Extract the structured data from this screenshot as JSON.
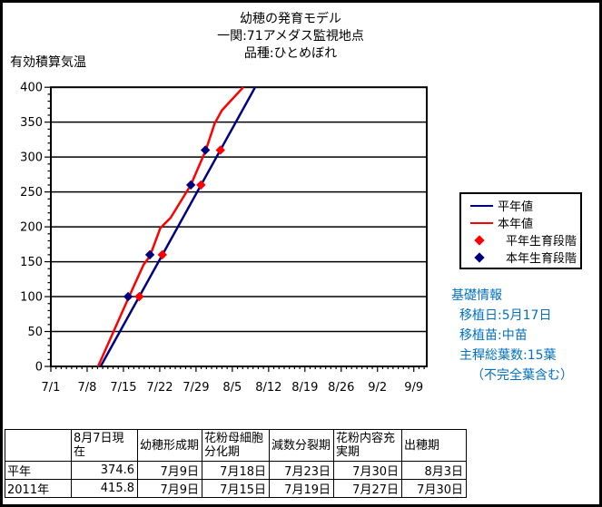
{
  "title": {
    "line1": "幼穂の発育モデル",
    "line2": "一関:71アメダス監視地点",
    "line3": "品種:ひとめぼれ"
  },
  "chart_data": {
    "type": "line",
    "title": "幼穂の発育モデル",
    "subtitle": "一関:71アメダス監視地点",
    "variety": "品種:ひとめぼれ",
    "ylabel": "有効積算気温",
    "ylim": [
      0,
      400
    ],
    "ytick_step": 50,
    "y_minor_step": 10,
    "x_ticks": [
      "7/1",
      "7/8",
      "7/15",
      "7/22",
      "7/29",
      "8/5",
      "8/12",
      "8/19",
      "8/26",
      "9/2",
      "9/9"
    ],
    "x_day_span": 72.5,
    "grid": "horizontal",
    "legend_position": "right",
    "series": [
      {
        "name": "平年値",
        "kind": "line",
        "color": "#000080",
        "points": [
          [
            9.6,
            0
          ],
          [
            39.4,
            400
          ]
        ]
      },
      {
        "name": "本年値",
        "kind": "line",
        "color": "#ff0000",
        "points": [
          [
            9.1,
            0
          ],
          [
            14.9,
            97
          ],
          [
            17.9,
            146
          ],
          [
            19.1,
            158
          ],
          [
            21.1,
            198
          ],
          [
            23.1,
            213
          ],
          [
            27.0,
            260
          ],
          [
            29.9,
            310
          ],
          [
            31.6,
            348
          ],
          [
            33.0,
            367
          ],
          [
            37.1,
            400
          ]
        ]
      },
      {
        "name": "平年生育段階",
        "kind": "scatter",
        "marker": "diamond",
        "color": "#ff0000",
        "stages": [
          {
            "stage": "花粉母細胞分化期",
            "date": "7月18日",
            "day": 17.05,
            "value": 100
          },
          {
            "stage": "減数分裂期",
            "date": "7月23日",
            "day": 21.5,
            "value": 160
          },
          {
            "stage": "花粉内容充実期",
            "date": "7月30日",
            "day": 28.95,
            "value": 260
          },
          {
            "stage": "出穂期",
            "date": "8月3日",
            "day": 32.7,
            "value": 310
          }
        ]
      },
      {
        "name": "本年生育段階",
        "kind": "scatter",
        "marker": "diamond",
        "color": "#000080",
        "stages": [
          {
            "stage": "花粉母細胞分化期",
            "date": "7月15日",
            "day": 14.9,
            "value": 100
          },
          {
            "stage": "減数分裂期",
            "date": "7月19日",
            "day": 19.1,
            "value": 160
          },
          {
            "stage": "花粉内容充実期",
            "date": "7月27日",
            "day": 27.0,
            "value": 260
          },
          {
            "stage": "出穂期",
            "date": "7月30日",
            "day": 29.8,
            "value": 310
          }
        ]
      }
    ]
  },
  "legend": {
    "items": [
      {
        "label": "平年値",
        "type": "line",
        "color": "#000080"
      },
      {
        "label": "本年値",
        "type": "line",
        "color": "#ff0000"
      },
      {
        "label": "平年生育段階",
        "type": "diamond",
        "color": "#ff0000"
      },
      {
        "label": "本年生育段階",
        "type": "diamond",
        "color": "#000080"
      }
    ]
  },
  "info": {
    "title": "基礎情報",
    "lines": [
      "移植日:5月17日",
      "移植苗:中苗",
      "主稈総葉数:15葉",
      "（不完全葉含む）"
    ],
    "color": "#0070C0"
  },
  "table": {
    "headers": [
      "",
      "8月7日現在",
      "幼穂形成期",
      "花粉母細胞分化期",
      "減数分裂期",
      "花粉内容充実期",
      "出穂期"
    ],
    "rows": [
      {
        "label": "平年",
        "values": [
          "374.6",
          "7月9日",
          "7月18日",
          "7月23日",
          "7月30日",
          "8月3日"
        ]
      },
      {
        "label": "2011年",
        "values": [
          "415.8",
          "7月9日",
          "7月15日",
          "7月19日",
          "7月27日",
          "7月30日"
        ]
      }
    ]
  },
  "colors": {
    "normal_year": "#000080",
    "this_year": "#ff0000",
    "info_text": "#0070C0",
    "axis": "#000000",
    "background": "#ffffff"
  }
}
